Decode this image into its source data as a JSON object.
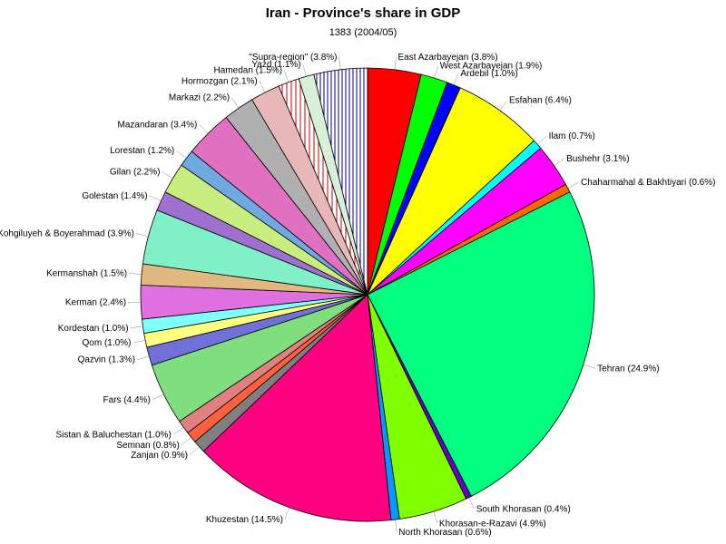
{
  "chart_data": {
    "type": "pie",
    "title": "Iran - Province's share in GDP",
    "subtitle": "1383 (2004/05)",
    "slices": [
      {
        "label": "East Azarbayejan (3.8%)",
        "value": 3.8,
        "color": "#ff0000"
      },
      {
        "label": "West Azarbayejan (1.9%)",
        "value": 1.9,
        "color": "#00ff00"
      },
      {
        "label": "Ardebil (1.0%)",
        "value": 1.0,
        "color": "#0000ff"
      },
      {
        "label": "Esfahan (6.4%)",
        "value": 6.4,
        "color": "#ffff00"
      },
      {
        "label": "Ilam  (0.7%)",
        "value": 0.7,
        "color": "#00ffff"
      },
      {
        "label": "Bushehr  (3.1%)",
        "value": 3.1,
        "color": "#ff00ff"
      },
      {
        "label": "Chaharmahal & Bakhtiyari (0.6%)",
        "value": 0.6,
        "color": "#ff6600"
      },
      {
        "label": "Tehran (24.9%)",
        "value": 24.9,
        "color": "#00ff7f"
      },
      {
        "label": "South Khorasan (0.4%)",
        "value": 0.4,
        "color": "#6600cc"
      },
      {
        "label": "Khorasan-e-Razavi (4.9%)",
        "value": 4.9,
        "color": "#80ff00"
      },
      {
        "label": "North Khorasan (0.6%)",
        "value": 0.6,
        "color": "#0099ff"
      },
      {
        "label": "Khuzestan  (14.5%)",
        "value": 14.5,
        "color": "#ff0080"
      },
      {
        "label": "Zanjan (0.9%)",
        "value": 0.9,
        "color": "#808080"
      },
      {
        "label": "Semnan (0.8%)",
        "value": 0.8,
        "color": "#ff6040"
      },
      {
        "label": "Sistan & Baluchestan (1.0%)",
        "value": 1.0,
        "color": "#e08080"
      },
      {
        "label": "Fars (4.4%)",
        "value": 4.4,
        "color": "#7fdf7f"
      },
      {
        "label": "Qazvin (1.3%)",
        "value": 1.3,
        "color": "#7070d8"
      },
      {
        "label": "Qom (1.0%)",
        "value": 1.0,
        "color": "#ffff80"
      },
      {
        "label": "Kordestan (1.0%)",
        "value": 1.0,
        "color": "#80ffff"
      },
      {
        "label": "Kerman (2.4%)",
        "value": 2.4,
        "color": "#e070e0"
      },
      {
        "label": "Kermanshah (1.5%)",
        "value": 1.5,
        "color": "#e0b880"
      },
      {
        "label": "Kohgiluyeh & Boyerahmad (3.9%)",
        "value": 3.9,
        "color": "#80f0c8"
      },
      {
        "label": "Golestan (1.4%)",
        "value": 1.4,
        "color": "#a070d0"
      },
      {
        "label": "Gilan  (2.2%)",
        "value": 2.2,
        "color": "#c8ee80"
      },
      {
        "label": "Lorestan (1.2%)",
        "value": 1.2,
        "color": "#70a8e0"
      },
      {
        "label": "Mazandaran (3.4%)",
        "value": 3.4,
        "color": "#e070c0"
      },
      {
        "label": "Markazi  (2.2%)",
        "value": 2.2,
        "color": "#b0b0b0"
      },
      {
        "label": "Hormozgan (2.1%)",
        "value": 2.1,
        "color": "#e8b8b8"
      },
      {
        "label": "Hamedan (1.5%)",
        "value": 1.5,
        "color": "#ffffff",
        "pattern": "red-hatch"
      },
      {
        "label": "Yazd (1.1%)",
        "value": 1.1,
        "color": "#d8f0d8"
      },
      {
        "label": "\"Supra-region\" (3.8%)",
        "value": 3.8,
        "color": "#ffffff",
        "pattern": "blue-hatch"
      }
    ],
    "start_angle_deg": 0,
    "direction": "clockwise"
  }
}
